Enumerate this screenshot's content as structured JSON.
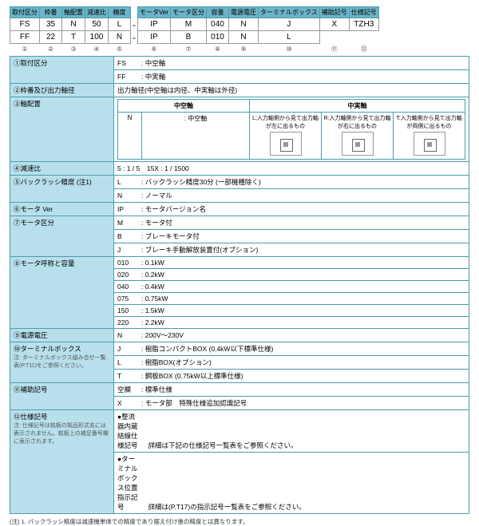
{
  "headers": [
    "取付区分",
    "枠番",
    "軸配置",
    "減速比",
    "精度",
    "",
    "モータVer",
    "モータ区分",
    "容量",
    "電源電圧",
    "ターミナルボックス",
    "補助記号",
    "仕様記号"
  ],
  "row1": [
    "FS",
    "35",
    "N",
    "50",
    "L",
    "-",
    "IP",
    "M",
    "040",
    "N",
    "J",
    "X",
    "TZH3"
  ],
  "row2": [
    "FF",
    "22",
    "T",
    "100",
    "N",
    "-",
    "IP",
    "B",
    "010",
    "N",
    "L",
    "",
    ""
  ],
  "nums": [
    "①",
    "②",
    "③",
    "④",
    "⑤",
    "",
    "⑥",
    "⑦",
    "⑧",
    "⑨",
    "⑩",
    "⑪",
    "⑫"
  ],
  "spec": [
    {
      "n": "①取付区分",
      "rows": [
        [
          "FS",
          ": 中空軸"
        ],
        [
          "FF",
          ": 中実軸"
        ]
      ]
    },
    {
      "n": "②枠番及び出力軸径",
      "rows": [
        [
          "出力軸径(中空軸は内径、中実軸は外径)"
        ]
      ]
    },
    {
      "n": "③軸配置",
      "shaft": true
    },
    {
      "n": "④減速比",
      "rows": [
        [
          "5 : 1 / 5　15X : 1 / 1500"
        ]
      ]
    },
    {
      "n": "⑤バックラッシ精度 (注1)",
      "rows": [
        [
          "L",
          ": バックラッシ精度30分 (一部機種除く)"
        ],
        [
          "N",
          ": ノーマル"
        ]
      ]
    },
    {
      "n": "⑥モータ Ver",
      "rows": [
        [
          "IP",
          ": モータバージョン名"
        ]
      ]
    },
    {
      "n": "⑦モータ区分",
      "rows": [
        [
          "M",
          ": モータ付"
        ],
        [
          "B",
          ": ブレーキモータ付"
        ],
        [
          "J",
          ": ブレーキ手動解放装置付(オプション)"
        ]
      ]
    },
    {
      "n": "⑧モータ呼称と容量",
      "rows": [
        [
          "010",
          ": 0.1kW"
        ],
        [
          "020",
          ": 0.2kW"
        ],
        [
          "040",
          ": 0.4kW"
        ],
        [
          "075",
          ": 0.75kW"
        ],
        [
          "150",
          ": 1.5kW"
        ],
        [
          "220",
          ": 2.2kW"
        ]
      ]
    },
    {
      "n": "⑨電源電圧",
      "rows": [
        [
          "N",
          ": 200V〜230V"
        ]
      ]
    },
    {
      "n": "⑩ターミナルボックス",
      "note": "注: ターミナルボックス組み合せ一覧表(P.T11)をご参照ください。",
      "rows": [
        [
          "J",
          ": 樹脂コンパクトBOX (0.4kW以下標準仕様)"
        ],
        [
          "L",
          ": 樹脂BOX(オプション)"
        ],
        [
          "T",
          ": 鋼板BOX (0.75kW以上標準仕様)"
        ]
      ]
    },
    {
      "n": "⑪補助記号",
      "rows": [
        [
          "空欄",
          ": 標準仕様"
        ],
        [
          "X",
          ": モータ部　特殊仕様追加認識記号"
        ]
      ]
    },
    {
      "n": "⑫仕様記号",
      "note": "注: 仕様記号は銘板の製品形式名には表示されません。銘板上の補足番号欄に表示されます。",
      "rows": [
        [
          "●整流器内蔵結線仕様記号",
          "　詳細は下記の仕様記号一覧表をご参照ください。"
        ],
        [
          "●ターミナルボックス位置指示記号",
          "　詳細は(P.T17)の指示記号一覧表をご参照ください。"
        ]
      ]
    }
  ],
  "shaft_hdr": {
    "hollow": "中空軸",
    "solid": "中実軸",
    "N": "N",
    "Ndesc": ": 中空軸",
    "L": "L:入力軸側から見て出力軸が左に出るもの",
    "R": "R:入力軸側から見て出力軸が右に出るもの",
    "T": "T:入力軸側から見て出力軸が両側に出るもの"
  },
  "footnote": "(注) 1. バックラッシ精度は減速機単体での精度であり据え付け後の精度とは異なります。"
}
